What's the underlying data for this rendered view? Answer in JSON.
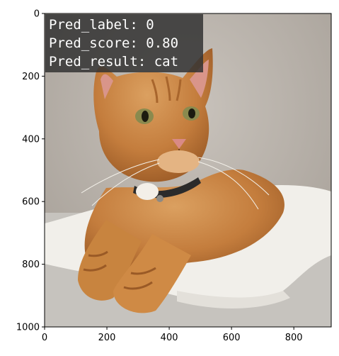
{
  "chart_data": {
    "type": "image",
    "title": "",
    "xlabel": "",
    "ylabel": "",
    "xlim": [
      0,
      920
    ],
    "ylim": [
      1000,
      0
    ],
    "x_ticks": [
      {
        "value": 0,
        "label": "0"
      },
      {
        "value": 200,
        "label": "200"
      },
      {
        "value": 400,
        "label": "400"
      },
      {
        "value": 600,
        "label": "600"
      },
      {
        "value": 800,
        "label": "800"
      }
    ],
    "y_ticks": [
      {
        "value": 0,
        "label": "0"
      },
      {
        "value": 200,
        "label": "200"
      },
      {
        "value": 400,
        "label": "400"
      },
      {
        "value": 600,
        "label": "600"
      },
      {
        "value": 800,
        "label": "800"
      },
      {
        "value": 1000,
        "label": "1000"
      }
    ],
    "annotation": {
      "lines": [
        "Pred_label: 0",
        "Pred_score: 0.80",
        "Pred_result: cat"
      ],
      "box_color": "#333333"
    },
    "image_subject": "cat-photo",
    "colors": {
      "wall": "#b9b2aa",
      "towel": "#f2f0ec",
      "surface": "#c9c6c1",
      "fur": "#c9803f",
      "fur_dark": "#9c5a24",
      "fur_light": "#e0a565"
    }
  }
}
